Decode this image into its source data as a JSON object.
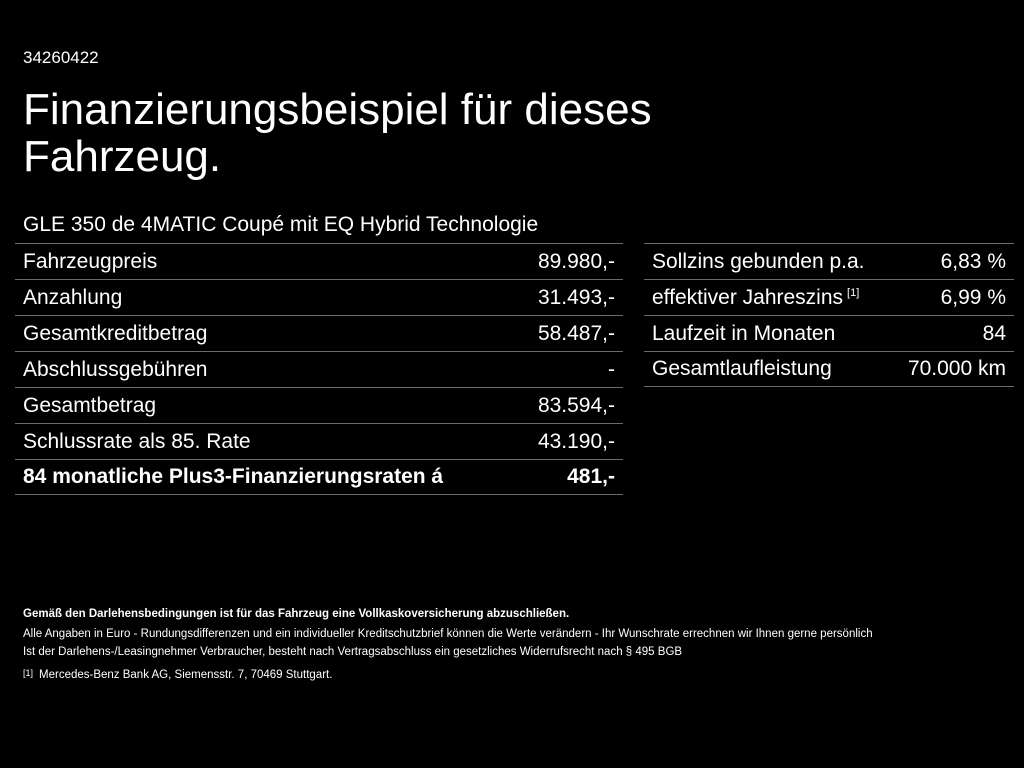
{
  "ref_number": "34260422",
  "title": "Finanzierungsbeispiel für dieses Fahrzeug.",
  "model": "GLE 350 de 4MATIC Coupé mit EQ Hybrid Technologie",
  "left_table": [
    {
      "label": "Fahrzeugpreis",
      "value": "89.980,-"
    },
    {
      "label": "Anzahlung",
      "value": "31.493,-"
    },
    {
      "label": "Gesamtkreditbetrag",
      "value": "58.487,-"
    },
    {
      "label": "Abschlussgebühren",
      "value": "-"
    },
    {
      "label": "Gesamtbetrag",
      "value": "83.594,-"
    },
    {
      "label": "Schlussrate als 85. Rate",
      "value": "43.190,-"
    },
    {
      "label": "84 monatliche Plus3-Finanzierungsraten á",
      "value": "481,-"
    }
  ],
  "right_table": [
    {
      "label": "Sollzins gebunden p.a.",
      "value": "6,83 %"
    },
    {
      "label": "effektiver Jahreszins",
      "footnote": "[1]",
      "value": "6,99 %"
    },
    {
      "label": "Laufzeit in Monaten",
      "value": "84"
    },
    {
      "label": "Gesamtlaufleistung",
      "value": "70.000 km"
    }
  ],
  "notes": {
    "bold_line": "Gemäß den Darlehensbedingungen ist für das Fahrzeug eine Vollkaskoversicherung abzuschließen.",
    "line1": "Alle Angaben in Euro - Rundungsdifferenzen und ein individueller Kreditschutzbrief können die Werte verändern - Ihr Wunschrate errechnen wir Ihnen gerne persönlich",
    "line2": "Ist der Darlehens-/Leasingnehmer Verbraucher, besteht nach Vertragsabschluss ein gesetzliches Widerrufsrecht nach § 495 BGB",
    "footnote_mark": "[1]",
    "footnote_text": "Mercedes-Benz Bank AG, Siemensstr. 7, 70469 Stuttgart."
  }
}
